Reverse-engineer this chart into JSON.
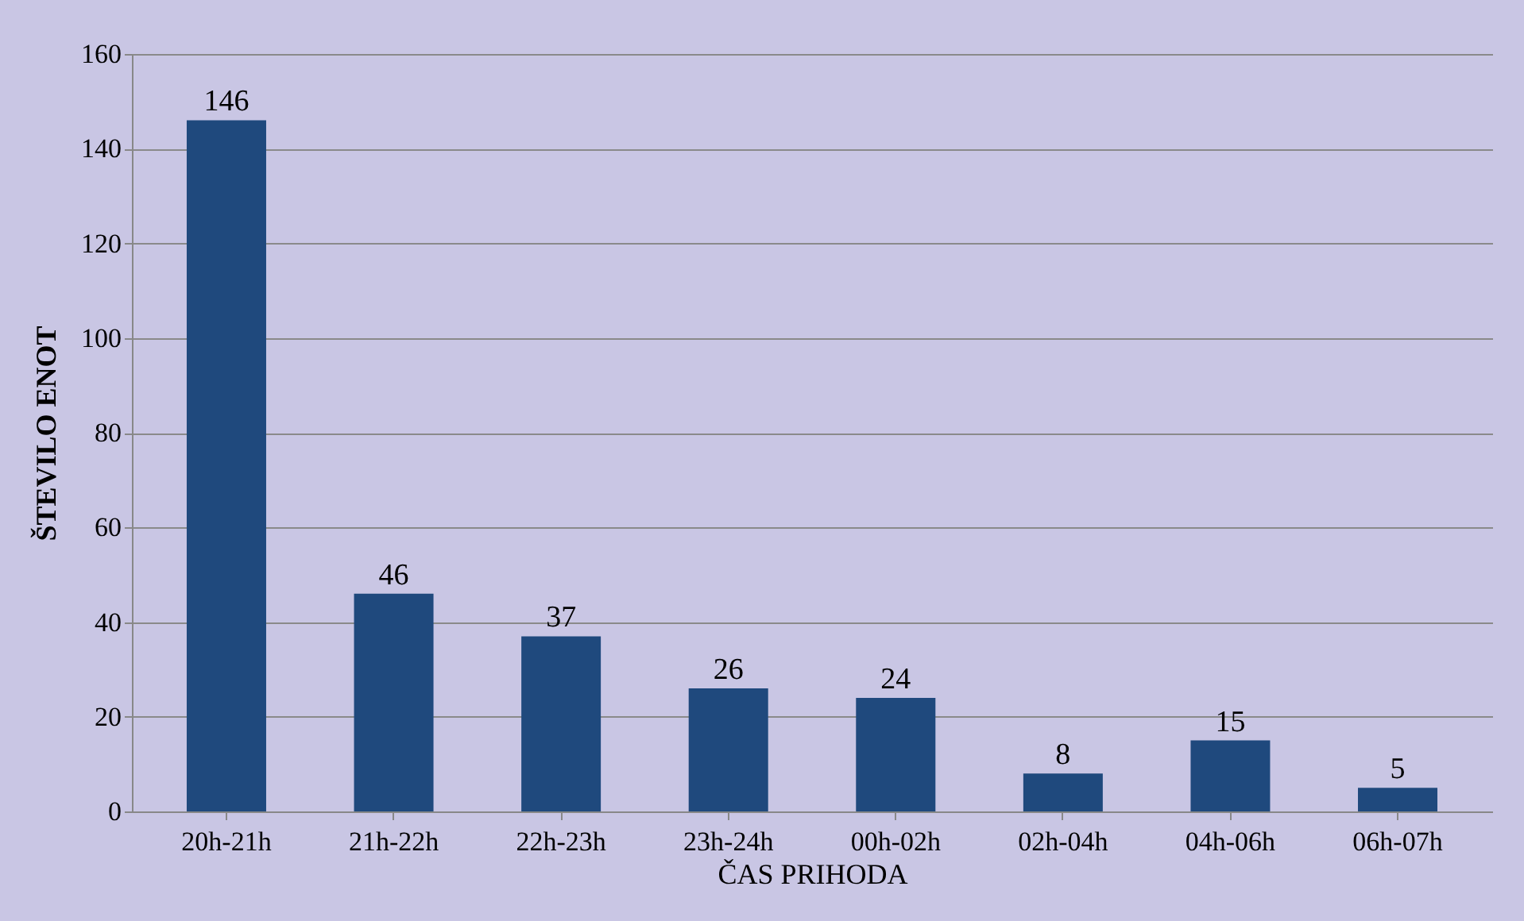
{
  "chart_data": {
    "type": "bar",
    "xlabel": "ČAS PRIHODA",
    "ylabel": "ŠTEVILO ENOT",
    "categories": [
      "20h-21h",
      "21h-22h",
      "22h-23h",
      "23h-24h",
      "00h-02h",
      "02h-04h",
      "04h-06h",
      "06h-07h"
    ],
    "values": [
      146,
      46,
      37,
      26,
      24,
      8,
      15,
      5
    ],
    "color": "#1f497d",
    "ylim": [
      0,
      160
    ],
    "yticks": [
      0,
      20,
      40,
      60,
      80,
      100,
      120,
      140,
      160
    ],
    "grid": "y",
    "data_labels": true
  }
}
